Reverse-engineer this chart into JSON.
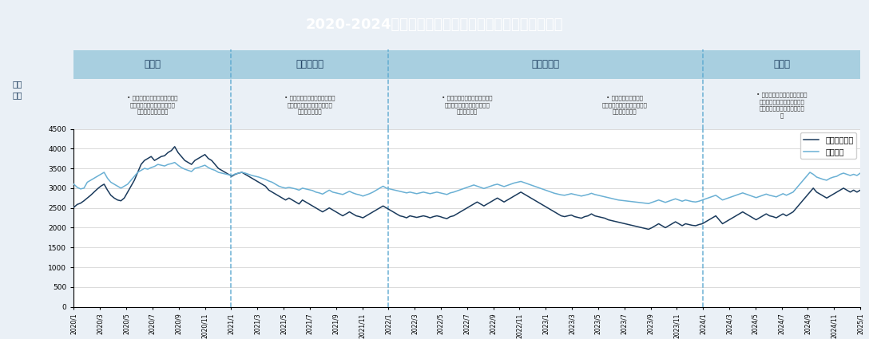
{
  "title": "2020-2024年医药生物及上证指数行情走势（周线数据）",
  "title_bg_color": "#1e3f66",
  "title_text_color": "#ffffff",
  "period_labels": [
    "强势期",
    "分化回调期",
    "持续下行期",
    "回暖期"
  ],
  "period_header_color": "#a8cfe0",
  "period_divider_color": "#5ba8d0",
  "period_descriptions": [
    "• 新冠疫情开始，口罩、防护服\n等医疗耗材以及体外诊断需求\n增长，迎来强势行情",
    "• 疫情防控常态化叠加集采常态\n化预期，行情逐渐分化，迎来\n一定程度的回调",
    "• 疫情形势严峻，生产消费受限\n集采政策继续深化，企业利润\n空间大幅压缩",
    "• 股票发行注册制改革\n医药反腐行动深度、广度和力\n度堪称前所未有",
    "• 国内外行业竞争加剧，市场供\n需关系的调整，药品集采、疫\n苗、医药零售等多领域降价明\n显"
  ],
  "ylim": [
    0,
    4500
  ],
  "yticks": [
    0,
    500,
    1000,
    1500,
    2000,
    2500,
    3000,
    3500,
    4000,
    4500
  ],
  "line_colors": {
    "medical": "#1a3a5c",
    "shanghai": "#6ab0d4"
  },
  "legend_labels": [
    "医药生物指数",
    "上证指数"
  ],
  "xtick_labels": [
    "2020/1",
    "2020/3",
    "2020/5",
    "2020/7",
    "2020/9",
    "2020/11",
    "2021/1",
    "2021/3",
    "2021/5",
    "2021/7",
    "2021/9",
    "2021/11",
    "2022/1",
    "2022/3",
    "2022/5",
    "2022/7",
    "2022/9",
    "2022/11",
    "2023/1",
    "2023/3",
    "2023/5",
    "2023/7",
    "2023/9",
    "2023/11",
    "2024/1",
    "2024/3",
    "2024/5",
    "2024/7",
    "2024/9",
    "2024/11",
    "2025/1"
  ],
  "div_tick_indices": [
    6,
    12,
    24
  ],
  "medical_data": [
    2516,
    2588,
    2620,
    2680,
    2750,
    2820,
    2900,
    2980,
    3050,
    3100,
    2950,
    2820,
    2750,
    2700,
    2680,
    2750,
    2900,
    3050,
    3200,
    3400,
    3600,
    3700,
    3750,
    3800,
    3700,
    3750,
    3800,
    3820,
    3900,
    3950,
    4050,
    3900,
    3800,
    3700,
    3650,
    3600,
    3700,
    3750,
    3800,
    3850,
    3750,
    3700,
    3600,
    3500,
    3450,
    3400,
    3350,
    3300,
    3350,
    3380,
    3400,
    3350,
    3300,
    3250,
    3200,
    3150,
    3100,
    3050,
    2950,
    2900,
    2850,
    2800,
    2750,
    2700,
    2750,
    2700,
    2650,
    2600,
    2700,
    2650,
    2600,
    2550,
    2500,
    2450,
    2400,
    2450,
    2500,
    2450,
    2400,
    2350,
    2300,
    2350,
    2400,
    2350,
    2300,
    2280,
    2250,
    2300,
    2350,
    2400,
    2450,
    2500,
    2550,
    2500,
    2450,
    2400,
    2350,
    2300,
    2280,
    2250,
    2300,
    2280,
    2260,
    2280,
    2300,
    2280,
    2250,
    2280,
    2300,
    2280,
    2250,
    2230,
    2280,
    2300,
    2350,
    2400,
    2450,
    2500,
    2550,
    2600,
    2650,
    2600,
    2550,
    2600,
    2650,
    2700,
    2750,
    2700,
    2650,
    2700,
    2750,
    2800,
    2850,
    2900,
    2850,
    2800,
    2750,
    2700,
    2650,
    2600,
    2550,
    2500,
    2450,
    2400,
    2350,
    2300,
    2280,
    2300,
    2320,
    2280,
    2260,
    2240,
    2280,
    2300,
    2350,
    2300,
    2280,
    2260,
    2240,
    2200,
    2180,
    2160,
    2140,
    2120,
    2100,
    2080,
    2060,
    2040,
    2020,
    2000,
    1980,
    1960,
    2000,
    2050,
    2100,
    2050,
    2000,
    2050,
    2100,
    2150,
    2100,
    2050,
    2100,
    2080,
    2060,
    2050,
    2080,
    2100,
    2150,
    2200,
    2250,
    2300,
    2200,
    2100,
    2150,
    2200,
    2250,
    2300,
    2350,
    2400,
    2350,
    2300,
    2250,
    2200,
    2250,
    2300,
    2350,
    2300,
    2280,
    2250,
    2300,
    2350,
    2300,
    2350,
    2400,
    2500,
    2600,
    2700,
    2800,
    2900,
    3000,
    2900,
    2850,
    2800,
    2750,
    2800,
    2850,
    2900,
    2950,
    3000,
    2950,
    2900,
    2950,
    2900,
    2950
  ],
  "shanghai_data": [
    3100,
    3020,
    2980,
    3000,
    3150,
    3200,
    3250,
    3300,
    3350,
    3400,
    3250,
    3150,
    3100,
    3050,
    3000,
    3050,
    3100,
    3200,
    3300,
    3400,
    3450,
    3500,
    3480,
    3520,
    3550,
    3600,
    3580,
    3560,
    3600,
    3620,
    3650,
    3580,
    3520,
    3480,
    3450,
    3420,
    3500,
    3520,
    3550,
    3580,
    3520,
    3480,
    3450,
    3400,
    3380,
    3360,
    3340,
    3320,
    3360,
    3380,
    3400,
    3380,
    3350,
    3320,
    3300,
    3280,
    3250,
    3220,
    3180,
    3150,
    3100,
    3050,
    3020,
    3000,
    3020,
    3000,
    2980,
    2950,
    3000,
    2980,
    2960,
    2940,
    2900,
    2880,
    2850,
    2900,
    2950,
    2900,
    2880,
    2860,
    2840,
    2880,
    2920,
    2880,
    2850,
    2830,
    2800,
    2830,
    2860,
    2900,
    2950,
    3000,
    3050,
    3000,
    2980,
    2960,
    2940,
    2920,
    2900,
    2880,
    2900,
    2880,
    2860,
    2880,
    2900,
    2880,
    2860,
    2880,
    2900,
    2880,
    2860,
    2840,
    2880,
    2900,
    2930,
    2960,
    2990,
    3020,
    3050,
    3080,
    3050,
    3020,
    2990,
    3020,
    3050,
    3080,
    3100,
    3070,
    3040,
    3070,
    3100,
    3130,
    3150,
    3170,
    3140,
    3110,
    3080,
    3050,
    3020,
    2990,
    2960,
    2930,
    2900,
    2870,
    2850,
    2830,
    2820,
    2840,
    2860,
    2840,
    2820,
    2800,
    2820,
    2840,
    2870,
    2840,
    2820,
    2800,
    2780,
    2760,
    2740,
    2720,
    2700,
    2690,
    2680,
    2670,
    2660,
    2650,
    2640,
    2630,
    2620,
    2610,
    2640,
    2670,
    2700,
    2670,
    2640,
    2670,
    2700,
    2730,
    2700,
    2670,
    2700,
    2680,
    2660,
    2650,
    2670,
    2700,
    2730,
    2760,
    2790,
    2820,
    2760,
    2700,
    2730,
    2760,
    2790,
    2820,
    2850,
    2880,
    2850,
    2820,
    2790,
    2760,
    2790,
    2820,
    2850,
    2820,
    2800,
    2780,
    2820,
    2860,
    2820,
    2860,
    2900,
    3000,
    3100,
    3200,
    3300,
    3400,
    3350,
    3280,
    3250,
    3220,
    3200,
    3250,
    3280,
    3300,
    3350,
    3380,
    3350,
    3320,
    3350,
    3320,
    3380
  ]
}
